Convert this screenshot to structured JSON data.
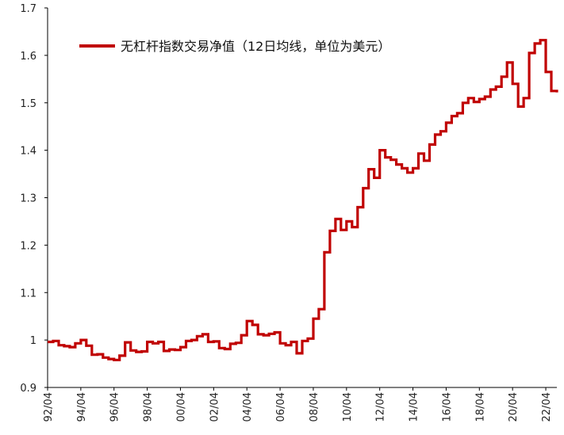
{
  "chart_data": {
    "type": "line",
    "title": "",
    "xlabel": "",
    "ylabel": "",
    "ylim": [
      0.9,
      1.7
    ],
    "y_ticks": [
      "0.9",
      "1",
      "1.1",
      "1.2",
      "1.3",
      "1.4",
      "1.5",
      "1.6",
      "1.7"
    ],
    "x_tick_labels": [
      "92/04",
      "94/04",
      "96/04",
      "98/04",
      "00/04",
      "02/04",
      "04/04",
      "06/04",
      "08/04",
      "10/04",
      "12/04",
      "14/04",
      "16/04",
      "18/04",
      "20/04",
      "22/04"
    ],
    "x_range": [
      "1992-04",
      "2022-12"
    ],
    "grid": false,
    "legend_position": "top-left",
    "line_color": "#C00000",
    "series": [
      {
        "name": "无杠杆指数交易净值（12日均线，单位为美元）",
        "step": true,
        "x": [
          "1992-04",
          "1992-08",
          "1992-12",
          "1993-04",
          "1993-08",
          "1993-12",
          "1994-04",
          "1994-08",
          "1994-12",
          "1995-04",
          "1995-08",
          "1995-12",
          "1996-04",
          "1996-08",
          "1996-12",
          "1997-04",
          "1997-08",
          "1997-12",
          "1998-04",
          "1998-08",
          "1998-12",
          "1999-04",
          "1999-08",
          "1999-12",
          "2000-04",
          "2000-08",
          "2000-12",
          "2001-04",
          "2001-08",
          "2001-12",
          "2002-04",
          "2002-08",
          "2002-12",
          "2003-04",
          "2003-08",
          "2003-12",
          "2004-04",
          "2004-08",
          "2004-12",
          "2005-04",
          "2005-08",
          "2005-12",
          "2006-04",
          "2006-08",
          "2006-12",
          "2007-04",
          "2007-08",
          "2007-12",
          "2008-04",
          "2008-08",
          "2008-12",
          "2009-04",
          "2009-08",
          "2009-12",
          "2010-04",
          "2010-08",
          "2010-12",
          "2011-04",
          "2011-08",
          "2011-12",
          "2012-04",
          "2012-08",
          "2012-12",
          "2013-04",
          "2013-08",
          "2013-12",
          "2014-04",
          "2014-08",
          "2014-12",
          "2015-04",
          "2015-08",
          "2015-12",
          "2016-04",
          "2016-08",
          "2016-12",
          "2017-04",
          "2017-08",
          "2017-12",
          "2018-04",
          "2018-08",
          "2018-12",
          "2019-04",
          "2019-08",
          "2019-12",
          "2020-04",
          "2020-08",
          "2020-12",
          "2021-04",
          "2021-08",
          "2021-12",
          "2022-04",
          "2022-08",
          "2022-12"
        ],
        "y": [
          0.996,
          0.998,
          0.989,
          0.987,
          0.985,
          0.993,
          1.0,
          0.988,
          0.969,
          0.97,
          0.963,
          0.96,
          0.958,
          0.967,
          0.995,
          0.978,
          0.975,
          0.976,
          0.996,
          0.993,
          0.996,
          0.977,
          0.98,
          0.979,
          0.985,
          0.998,
          1.0,
          1.008,
          1.012,
          0.996,
          0.997,
          0.983,
          0.981,
          0.992,
          0.994,
          1.01,
          1.04,
          1.032,
          1.012,
          1.01,
          1.013,
          1.016,
          0.993,
          0.989,
          0.996,
          0.972,
          0.998,
          1.003,
          1.045,
          1.065,
          1.185,
          1.23,
          1.255,
          1.232,
          1.25,
          1.238,
          1.28,
          1.32,
          1.36,
          1.342,
          1.4,
          1.385,
          1.38,
          1.37,
          1.362,
          1.353,
          1.362,
          1.393,
          1.378,
          1.412,
          1.433,
          1.44,
          1.458,
          1.472,
          1.478,
          1.5,
          1.51,
          1.502,
          1.508,
          1.513,
          1.528,
          1.534,
          1.555,
          1.585,
          1.54,
          1.492,
          1.51,
          1.605,
          1.625,
          1.632,
          1.565,
          1.525,
          1.522
        ]
      }
    ]
  }
}
